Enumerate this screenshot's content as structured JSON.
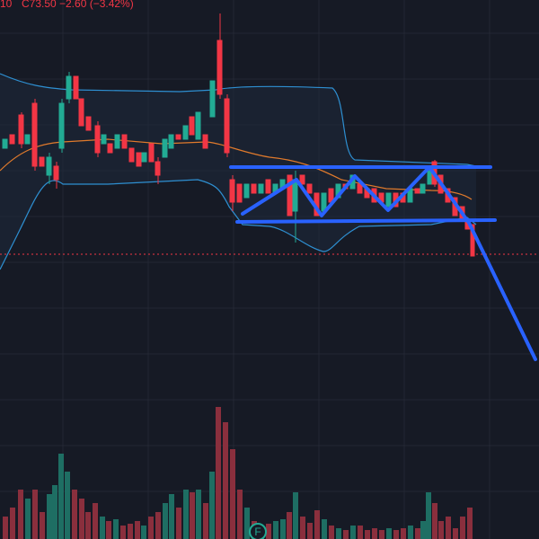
{
  "header": {
    "open_fragment": "10",
    "close": "C73.50",
    "change": "−2.60 (−3.42%)"
  },
  "badge": "F"
}
